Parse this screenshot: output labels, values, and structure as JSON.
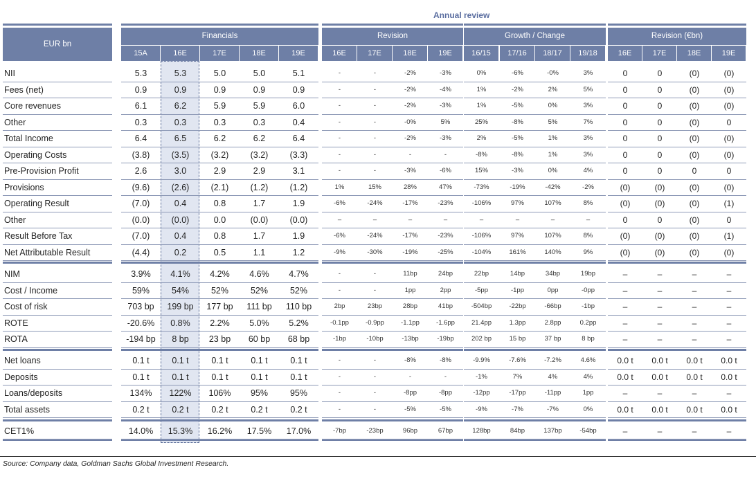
{
  "annual_review": "Annual review",
  "corner_label": "EUR bn",
  "groups": [
    "Financials",
    "Revision",
    "Growth / Change",
    "Revision (€bn)"
  ],
  "subheaders": {
    "financials": [
      "15A",
      "16E",
      "17E",
      "18E",
      "19E"
    ],
    "revision": [
      "16E",
      "17E",
      "18E",
      "19E"
    ],
    "growth": [
      "16/15",
      "17/16",
      "18/17",
      "19/18"
    ],
    "rev_eur": [
      "16E",
      "17E",
      "18E",
      "19E"
    ]
  },
  "sections": [
    {
      "rows": [
        {
          "label": "NII",
          "fin": [
            "5.3",
            "5.3",
            "5.0",
            "5.0",
            "5.1"
          ],
          "rev": [
            "-",
            "-",
            "-2%",
            "-3%"
          ],
          "gr": [
            "0%",
            "-6%",
            "-0%",
            "3%"
          ],
          "reur": [
            "0",
            "0",
            "(0)",
            "(0)"
          ]
        },
        {
          "label": "Fees (net)",
          "fin": [
            "0.9",
            "0.9",
            "0.9",
            "0.9",
            "0.9"
          ],
          "rev": [
            "-",
            "-",
            "-2%",
            "-4%"
          ],
          "gr": [
            "1%",
            "-2%",
            "2%",
            "5%"
          ],
          "reur": [
            "0",
            "0",
            "(0)",
            "(0)"
          ]
        },
        {
          "label": "Core revenues",
          "fin": [
            "6.1",
            "6.2",
            "5.9",
            "5.9",
            "6.0"
          ],
          "rev": [
            "-",
            "-",
            "-2%",
            "-3%"
          ],
          "gr": [
            "1%",
            "-5%",
            "0%",
            "3%"
          ],
          "reur": [
            "0",
            "0",
            "(0)",
            "(0)"
          ]
        },
        {
          "label": "Other",
          "fin": [
            "0.3",
            "0.3",
            "0.3",
            "0.3",
            "0.4"
          ],
          "rev": [
            "-",
            "-",
            "-0%",
            "5%"
          ],
          "gr": [
            "25%",
            "-8%",
            "5%",
            "7%"
          ],
          "reur": [
            "0",
            "0",
            "(0)",
            "0"
          ]
        },
        {
          "label": "Total Income",
          "fin": [
            "6.4",
            "6.5",
            "6.2",
            "6.2",
            "6.4"
          ],
          "rev": [
            "-",
            "-",
            "-2%",
            "-3%"
          ],
          "gr": [
            "2%",
            "-5%",
            "1%",
            "3%"
          ],
          "reur": [
            "0",
            "0",
            "(0)",
            "(0)"
          ]
        },
        {
          "label": "Operating Costs",
          "fin": [
            "(3.8)",
            "(3.5)",
            "(3.2)",
            "(3.2)",
            "(3.3)"
          ],
          "rev": [
            "-",
            "-",
            "-",
            "-"
          ],
          "gr": [
            "-8%",
            "-8%",
            "1%",
            "3%"
          ],
          "reur": [
            "0",
            "0",
            "(0)",
            "(0)"
          ]
        },
        {
          "label": "Pre-Provision Profit",
          "fin": [
            "2.6",
            "3.0",
            "2.9",
            "2.9",
            "3.1"
          ],
          "rev": [
            "-",
            "-",
            "-3%",
            "-6%"
          ],
          "gr": [
            "15%",
            "-3%",
            "0%",
            "4%"
          ],
          "reur": [
            "0",
            "0",
            "0",
            "0"
          ]
        },
        {
          "label": "Provisions",
          "fin": [
            "(9.6)",
            "(2.6)",
            "(2.1)",
            "(1.2)",
            "(1.2)"
          ],
          "rev": [
            "1%",
            "15%",
            "28%",
            "47%"
          ],
          "gr": [
            "-73%",
            "-19%",
            "-42%",
            "-2%"
          ],
          "reur": [
            "(0)",
            "(0)",
            "(0)",
            "(0)"
          ]
        },
        {
          "label": "Operating Result",
          "fin": [
            "(7.0)",
            "0.4",
            "0.8",
            "1.7",
            "1.9"
          ],
          "rev": [
            "-6%",
            "-24%",
            "-17%",
            "-23%"
          ],
          "gr": [
            "-106%",
            "97%",
            "107%",
            "8%"
          ],
          "reur": [
            "(0)",
            "(0)",
            "(0)",
            "(1)"
          ]
        },
        {
          "label": "Other",
          "fin": [
            "(0.0)",
            "(0.0)",
            "0.0",
            "(0.0)",
            "(0.0)"
          ],
          "rev": [
            "–",
            "–",
            "–",
            "–"
          ],
          "gr": [
            "–",
            "–",
            "–",
            "–"
          ],
          "reur": [
            "0",
            "0",
            "(0)",
            "0"
          ]
        },
        {
          "label": "Result Before Tax",
          "fin": [
            "(7.0)",
            "0.4",
            "0.8",
            "1.7",
            "1.9"
          ],
          "rev": [
            "-6%",
            "-24%",
            "-17%",
            "-23%"
          ],
          "gr": [
            "-106%",
            "97%",
            "107%",
            "8%"
          ],
          "reur": [
            "(0)",
            "(0)",
            "(0)",
            "(1)"
          ]
        },
        {
          "label": "Net Attributable Result",
          "fin": [
            "(4.4)",
            "0.2",
            "0.5",
            "1.1",
            "1.2"
          ],
          "rev": [
            "-9%",
            "-30%",
            "-19%",
            "-25%"
          ],
          "gr": [
            "-104%",
            "161%",
            "140%",
            "9%"
          ],
          "reur": [
            "(0)",
            "(0)",
            "(0)",
            "(0)"
          ]
        }
      ]
    },
    {
      "rows": [
        {
          "label": "NIM",
          "fin": [
            "3.9%",
            "4.1%",
            "4.2%",
            "4.6%",
            "4.7%"
          ],
          "rev": [
            "-",
            "-",
            "11bp",
            "24bp"
          ],
          "gr": [
            "22bp",
            "14bp",
            "34bp",
            "19bp"
          ],
          "reur": [
            "–",
            "–",
            "–",
            "–"
          ]
        },
        {
          "label": "Cost / Income",
          "fin": [
            "59%",
            "54%",
            "52%",
            "52%",
            "52%"
          ],
          "rev": [
            "-",
            "-",
            "1pp",
            "2pp"
          ],
          "gr": [
            "-5pp",
            "-1pp",
            "0pp",
            "-0pp"
          ],
          "reur": [
            "–",
            "–",
            "–",
            "–"
          ]
        },
        {
          "label": "Cost of risk",
          "fin": [
            "703 bp",
            "199 bp",
            "177 bp",
            "111 bp",
            "110 bp"
          ],
          "rev": [
            "2bp",
            "23bp",
            "28bp",
            "41bp"
          ],
          "gr": [
            "-504bp",
            "-22bp",
            "-66bp",
            "-1bp"
          ],
          "reur": [
            "–",
            "–",
            "–",
            "–"
          ]
        },
        {
          "label": "ROTE",
          "fin": [
            "-20.6%",
            "0.8%",
            "2.2%",
            "5.0%",
            "5.2%"
          ],
          "rev": [
            "-0.1pp",
            "-0.9pp",
            "-1.1pp",
            "-1.6pp"
          ],
          "gr": [
            "21.4pp",
            "1.3pp",
            "2.8pp",
            "0.2pp"
          ],
          "reur": [
            "–",
            "–",
            "–",
            "–"
          ]
        },
        {
          "label": "ROTA",
          "fin": [
            "-194 bp",
            "8 bp",
            "23 bp",
            "60 bp",
            "68 bp"
          ],
          "rev": [
            "-1bp",
            "-10bp",
            "-13bp",
            "-19bp"
          ],
          "gr": [
            "202 bp",
            "15 bp",
            "37 bp",
            "8 bp"
          ],
          "reur": [
            "–",
            "–",
            "–",
            "–"
          ]
        }
      ]
    },
    {
      "rows": [
        {
          "label": "Net loans",
          "fin": [
            "0.1 t",
            "0.1 t",
            "0.1 t",
            "0.1 t",
            "0.1 t"
          ],
          "rev": [
            "-",
            "-",
            "-8%",
            "-8%"
          ],
          "gr": [
            "-9.9%",
            "-7.6%",
            "-7.2%",
            "4.6%"
          ],
          "reur": [
            "0.0 t",
            "0.0 t",
            "0.0 t",
            "0.0 t"
          ]
        },
        {
          "label": "Deposits",
          "fin": [
            "0.1 t",
            "0.1 t",
            "0.1 t",
            "0.1 t",
            "0.1 t"
          ],
          "rev": [
            "-",
            "-",
            "-",
            "-"
          ],
          "gr": [
            "-1%",
            "7%",
            "4%",
            "4%"
          ],
          "reur": [
            "0.0 t",
            "0.0 t",
            "0.0 t",
            "0.0 t"
          ]
        },
        {
          "label": "Loans/deposits",
          "fin": [
            "134%",
            "122%",
            "106%",
            "95%",
            "95%"
          ],
          "rev": [
            "-",
            "-",
            "-8pp",
            "-8pp"
          ],
          "gr": [
            "-12pp",
            "-17pp",
            "-11pp",
            "1pp"
          ],
          "reur": [
            "–",
            "–",
            "–",
            "–"
          ]
        },
        {
          "label": "Total assets",
          "fin": [
            "0.2 t",
            "0.2 t",
            "0.2 t",
            "0.2 t",
            "0.2 t"
          ],
          "rev": [
            "-",
            "-",
            "-5%",
            "-5%"
          ],
          "gr": [
            "-9%",
            "-7%",
            "-7%",
            "0%"
          ],
          "reur": [
            "0.0 t",
            "0.0 t",
            "0.0 t",
            "0.0 t"
          ]
        }
      ]
    },
    {
      "rows": [
        {
          "label": "CET1%",
          "fin": [
            "14.0%",
            "15.3%",
            "16.2%",
            "17.5%",
            "17.0%"
          ],
          "rev": [
            "-7bp",
            "-23bp",
            "96bp",
            "67bp"
          ],
          "gr": [
            "128bp",
            "84bp",
            "137bp",
            "-54bp"
          ],
          "reur": [
            "–",
            "–",
            "–",
            "–"
          ]
        }
      ]
    }
  ],
  "source": "Source: Company data, Goldman Sachs Global Investment Research."
}
